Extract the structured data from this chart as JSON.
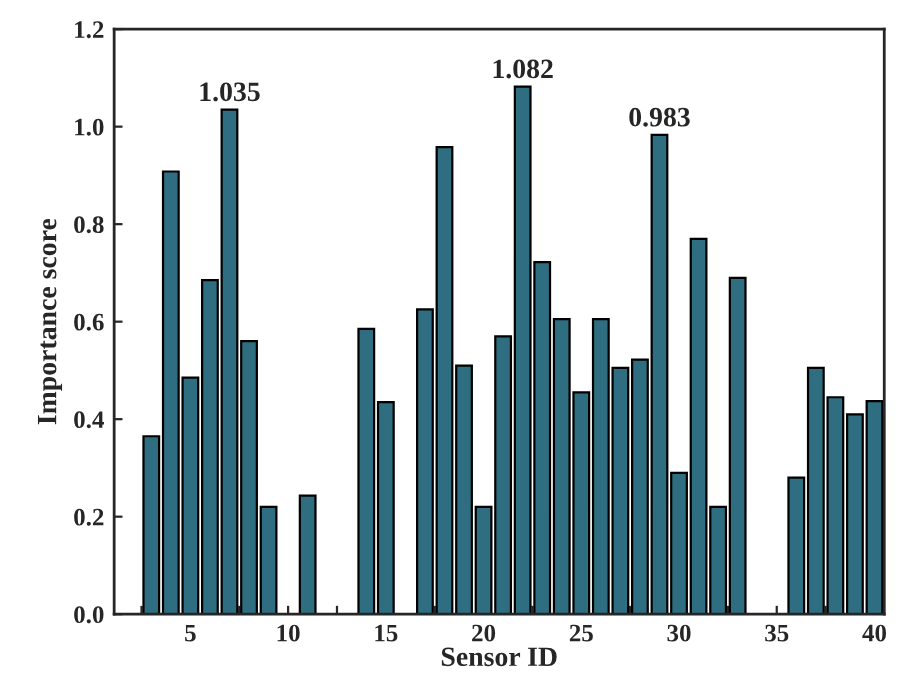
{
  "chart_data": {
    "type": "bar",
    "xlabel": "Sensor ID",
    "ylabel": "Importance score",
    "x": [
      3,
      4,
      5,
      6,
      7,
      8,
      9,
      11,
      14,
      15,
      17,
      18,
      19,
      20,
      21,
      22,
      23,
      24,
      25,
      26,
      27,
      28,
      29,
      30,
      31,
      32,
      33,
      36,
      37,
      38,
      39,
      40
    ],
    "values": [
      0.365,
      0.908,
      0.485,
      0.685,
      1.035,
      0.56,
      0.22,
      0.243,
      0.585,
      0.435,
      0.625,
      0.958,
      0.51,
      0.22,
      0.57,
      1.082,
      0.722,
      0.605,
      0.455,
      0.605,
      0.505,
      0.522,
      0.983,
      0.29,
      0.77,
      0.22,
      0.69,
      0.28,
      0.505,
      0.445,
      0.41,
      0.437
    ],
    "value_labels": [
      null,
      null,
      null,
      null,
      "1.035",
      null,
      null,
      null,
      null,
      null,
      null,
      null,
      null,
      null,
      null,
      "1.082",
      null,
      null,
      null,
      null,
      null,
      null,
      "0.983",
      null,
      null,
      null,
      null,
      null,
      null,
      null,
      null,
      null
    ],
    "color": "#2e6e80",
    "xlim": [
      1.1,
      40.5
    ],
    "xticks": [
      {
        "value": 2.5,
        "label": null
      },
      5,
      {
        "value": 7.5,
        "label": null
      },
      10,
      {
        "value": 12.5,
        "label": null
      },
      15,
      {
        "value": 17.5,
        "label": null
      },
      20,
      {
        "value": 22.5,
        "label": null
      },
      25,
      {
        "value": 27.5,
        "label": null
      },
      30,
      {
        "value": 32.5,
        "label": null
      },
      35,
      {
        "value": 37.5,
        "label": null
      },
      40
    ],
    "ylim": [
      0,
      1.2
    ],
    "yticks": [
      {
        "value": 0,
        "label": "0.0"
      },
      {
        "value": 0.2,
        "label": "0.2"
      },
      {
        "value": 0.4,
        "label": "0.4"
      },
      {
        "value": 0.6,
        "label": "0.6"
      },
      {
        "value": 0.8,
        "label": "0.8"
      },
      {
        "value": 1.0,
        "label": "1.0"
      },
      {
        "value": 1.2,
        "label": "1.2"
      }
    ],
    "grid": false,
    "legend": false
  }
}
